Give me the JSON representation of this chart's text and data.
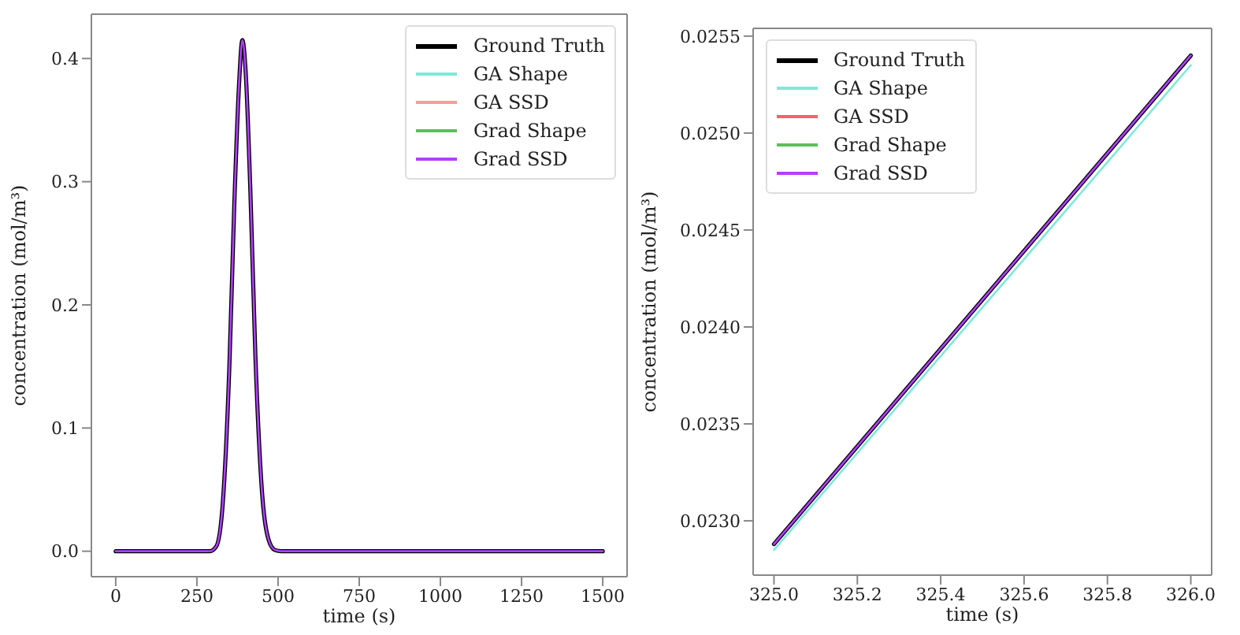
{
  "chart_data": [
    {
      "type": "line",
      "xlabel": "time (s)",
      "ylabel": "concentration (mol/m³)",
      "xlim": [
        -75,
        1575
      ],
      "ylim": [
        -0.0207,
        0.436
      ],
      "xticks": [
        0,
        250,
        500,
        750,
        1000,
        1250,
        1500
      ],
      "yticks": [
        {
          "value": 0,
          "label": "0.0"
        },
        0.1,
        0.2,
        0.3,
        0.4
      ],
      "grid": false,
      "legend": "top right",
      "series": [
        {
          "name": "Ground Truth",
          "color": "#000000",
          "x": [
            0,
            290,
            310,
            330,
            350,
            365,
            380,
            390,
            400,
            415,
            430,
            450,
            470,
            490,
            510,
            1500
          ],
          "values": [
            0,
            0,
            0.004,
            0.04,
            0.15,
            0.28,
            0.38,
            0.415,
            0.39,
            0.29,
            0.16,
            0.05,
            0.01,
            0.001,
            0,
            0
          ]
        },
        {
          "name": "GA Shape",
          "color": "#7fe8d8"
        },
        {
          "name": "GA SSD",
          "color": "#ff9a9a"
        },
        {
          "name": "Grad Shape",
          "color": "#5cbf5c"
        },
        {
          "name": "Grad SSD",
          "color": "#b040ff",
          "x": [
            0,
            290,
            310,
            330,
            350,
            365,
            380,
            390,
            400,
            415,
            430,
            450,
            470,
            490,
            510,
            1500
          ],
          "values": [
            0,
            0,
            0.004,
            0.04,
            0.15,
            0.28,
            0.38,
            0.415,
            0.39,
            0.29,
            0.16,
            0.05,
            0.01,
            0.001,
            0,
            0
          ]
        }
      ]
    },
    {
      "type": "line",
      "xlabel": "time (s)",
      "ylabel": "concentration (mol/m³)",
      "xlim": [
        324.95,
        326.05
      ],
      "ylim": [
        0.02272,
        0.02554
      ],
      "xticks": [
        {
          "value": 325,
          "label": "325.0"
        },
        325.2,
        325.4,
        325.6,
        325.8,
        {
          "value": 326,
          "label": "326.0"
        }
      ],
      "yticks": [
        {
          "value": 0.023,
          "label": "0.0230"
        },
        0.0235,
        {
          "value": 0.024,
          "label": "0.0240"
        },
        0.0245,
        {
          "value": 0.025,
          "label": "0.0250"
        },
        0.0255
      ],
      "grid": false,
      "legend": "top left",
      "series": [
        {
          "name": "Ground Truth",
          "color": "#000000",
          "x": [
            325,
            326
          ],
          "values": [
            0.02288,
            0.0254
          ]
        },
        {
          "name": "GA Shape",
          "color": "#7fe8d8",
          "x": [
            325,
            326
          ],
          "values": [
            0.02285,
            0.02535
          ]
        },
        {
          "name": "GA SSD",
          "color": "#ff6060"
        },
        {
          "name": "Grad Shape",
          "color": "#5cbf5c"
        },
        {
          "name": "Grad SSD",
          "color": "#b040ff",
          "x": [
            325,
            326
          ],
          "values": [
            0.02288,
            0.0254
          ]
        }
      ]
    }
  ]
}
